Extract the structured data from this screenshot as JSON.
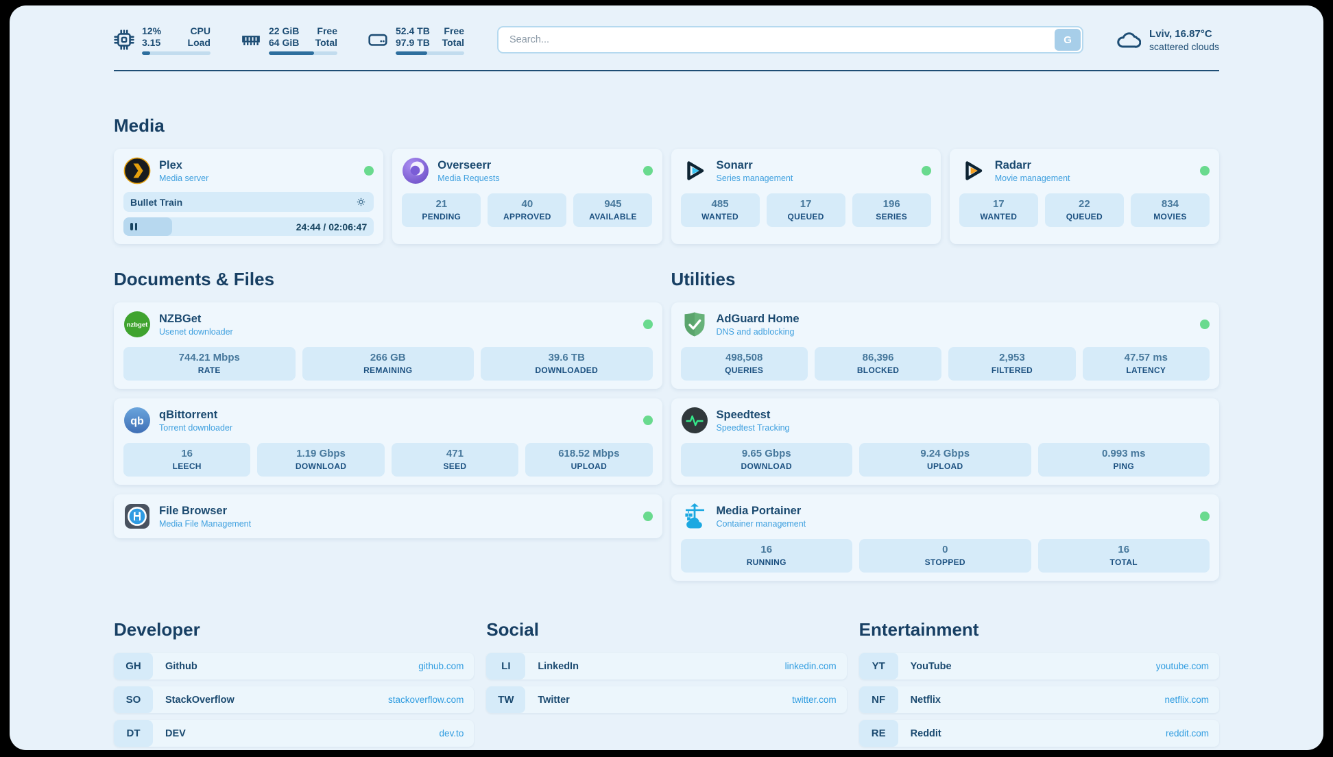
{
  "header": {
    "monitors": [
      {
        "icon": "cpu-icon",
        "value1": "12%",
        "label1": "CPU",
        "value2": "3.15",
        "label2": "Load",
        "progress_pct": 12
      },
      {
        "icon": "ram-icon",
        "value1": "22 GiB",
        "label1": "Free",
        "value2": "64 GiB",
        "label2": "Total",
        "progress_pct": 66
      },
      {
        "icon": "disk-icon",
        "value1": "52.4 TB",
        "label1": "Free",
        "value2": "97.9 TB",
        "label2": "Total",
        "progress_pct": 46
      }
    ],
    "search": {
      "placeholder": "Search...",
      "engine_button_label": "G"
    },
    "weather": {
      "icon": "cloud-icon",
      "location_temperature": "Lviv, 16.87°C",
      "condition": "scattered clouds"
    }
  },
  "media": {
    "title": "Media",
    "plex": {
      "icon": "plex-icon",
      "name": "Plex",
      "description": "Media server",
      "status": "online",
      "now_playing": {
        "title": "Bullet Train",
        "time": "24:44 / 02:06:47",
        "progress_pct": 19.5
      }
    },
    "overseerr": {
      "icon": "overseerr-icon",
      "name": "Overseerr",
      "description": "Media Requests",
      "status": "online",
      "stats": [
        {
          "value": "21",
          "label": "PENDING"
        },
        {
          "value": "40",
          "label": "APPROVED"
        },
        {
          "value": "945",
          "label": "AVAILABLE"
        }
      ]
    },
    "sonarr": {
      "icon": "sonarr-icon",
      "name": "Sonarr",
      "description": "Series management",
      "status": "online",
      "stats": [
        {
          "value": "485",
          "label": "WANTED"
        },
        {
          "value": "17",
          "label": "QUEUED"
        },
        {
          "value": "196",
          "label": "SERIES"
        }
      ]
    },
    "radarr": {
      "icon": "radarr-icon",
      "name": "Radarr",
      "description": "Movie management",
      "status": "online",
      "stats": [
        {
          "value": "17",
          "label": "WANTED"
        },
        {
          "value": "22",
          "label": "QUEUED"
        },
        {
          "value": "834",
          "label": "MOVIES"
        }
      ]
    }
  },
  "documents": {
    "title": "Documents & Files",
    "nzbget": {
      "icon": "nzbget-icon",
      "name": "NZBGet",
      "description": "Usenet downloader",
      "status": "online",
      "stats": [
        {
          "value": "744.21 Mbps",
          "label": "RATE"
        },
        {
          "value": "266 GB",
          "label": "REMAINING"
        },
        {
          "value": "39.6 TB",
          "label": "DOWNLOADED"
        }
      ]
    },
    "qbittorrent": {
      "icon": "qbittorrent-icon",
      "name": "qBittorrent",
      "description": "Torrent downloader",
      "status": "online",
      "stats": [
        {
          "value": "16",
          "label": "LEECH"
        },
        {
          "value": "1.19 Gbps",
          "label": "DOWNLOAD"
        },
        {
          "value": "471",
          "label": "SEED"
        },
        {
          "value": "618.52 Mbps",
          "label": "UPLOAD"
        }
      ]
    },
    "filebrowser": {
      "icon": "filebrowser-icon",
      "name": "File Browser",
      "description": "Media File Management",
      "status": "online"
    }
  },
  "utilities": {
    "title": "Utilities",
    "adguard": {
      "icon": "adguard-icon",
      "name": "AdGuard Home",
      "description": "DNS and adblocking",
      "status": "online",
      "stats": [
        {
          "value": "498,508",
          "label": "QUERIES"
        },
        {
          "value": "86,396",
          "label": "BLOCKED"
        },
        {
          "value": "2,953",
          "label": "FILTERED"
        },
        {
          "value": "47.57 ms",
          "label": "LATENCY"
        }
      ]
    },
    "speedtest": {
      "icon": "speedtest-icon",
      "name": "Speedtest",
      "description": "Speedtest Tracking",
      "stats": [
        {
          "value": "9.65 Gbps",
          "label": "DOWNLOAD"
        },
        {
          "value": "9.24 Gbps",
          "label": "UPLOAD"
        },
        {
          "value": "0.993 ms",
          "label": "PING"
        }
      ]
    },
    "portainer": {
      "icon": "portainer-icon",
      "name": "Media Portainer",
      "description": "Container management",
      "status": "online",
      "stats": [
        {
          "value": "16",
          "label": "RUNNING"
        },
        {
          "value": "0",
          "label": "STOPPED"
        },
        {
          "value": "16",
          "label": "TOTAL"
        }
      ]
    }
  },
  "links": {
    "developer": {
      "title": "Developer",
      "items": [
        {
          "abbr": "GH",
          "name": "Github",
          "url": "github.com"
        },
        {
          "abbr": "SO",
          "name": "StackOverflow",
          "url": "stackoverflow.com"
        },
        {
          "abbr": "DT",
          "name": "DEV",
          "url": "dev.to"
        }
      ]
    },
    "social": {
      "title": "Social",
      "items": [
        {
          "abbr": "LI",
          "name": "LinkedIn",
          "url": "linkedin.com"
        },
        {
          "abbr": "TW",
          "name": "Twitter",
          "url": "twitter.com"
        }
      ]
    },
    "entertainment": {
      "title": "Entertainment",
      "items": [
        {
          "abbr": "YT",
          "name": "YouTube",
          "url": "youtube.com"
        },
        {
          "abbr": "NF",
          "name": "Netflix",
          "url": "netflix.com"
        },
        {
          "abbr": "RE",
          "name": "Reddit",
          "url": "reddit.com"
        }
      ]
    }
  },
  "colors": {
    "status_online": "#69da8e",
    "accent_blue": "#3fa0df",
    "link_blue": "#2f9ce0",
    "navy": "#1b4a70",
    "progress_fill": "#2e6f9e"
  }
}
